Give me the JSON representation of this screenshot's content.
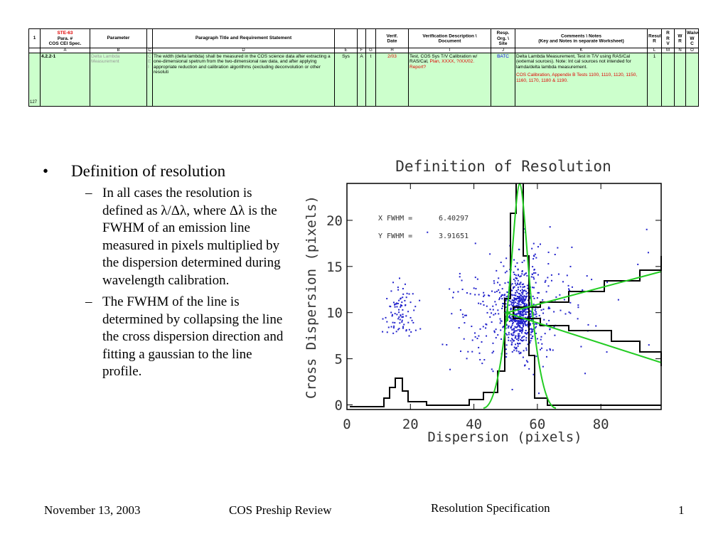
{
  "table": {
    "header": [
      [
        "1"
      ],
      [
        "COS CEI Spec.",
        "Para. #",
        "STE-63"
      ],
      [
        "Parameter"
      ],
      [
        ""
      ],
      [
        "Paragraph Title and Requirement Statement"
      ],
      [
        ""
      ],
      [
        ""
      ],
      [
        ""
      ],
      [
        "Date",
        "Verif."
      ],
      [
        "Document",
        "Verification Description \\"
      ],
      [
        "Site",
        "Org. \\",
        "Resp."
      ],
      [
        "(Key and Notes in separate Worksheet)",
        "Comments \\ Notes"
      ],
      [
        "R",
        "Results"
      ],
      [
        "V",
        "R",
        "R"
      ],
      [
        "R",
        "W"
      ],
      [
        "C",
        "W",
        "Waiver"
      ]
    ],
    "letters": [
      "A",
      "B",
      "C",
      "D",
      "E",
      "F",
      "G",
      "H",
      "I",
      "J",
      "K",
      "L",
      "M",
      "N",
      "O"
    ],
    "row_number": "127",
    "row": {
      "id": "4.2.2-1",
      "parameter": "Delta Lambda Measurement",
      "cei": "C E I",
      "requirement": "The width (delta lambda) shall be measured in the COS science data after extracting a one-dimensional spetrum from the two-dimensional raw data, and after applying appropriate reduction and calibration algorithms (excluding deconvolution or other resoluti",
      "e": "Sys",
      "f": "A",
      "g": "t",
      "date": "2/03",
      "doc_black": "Test, COS Sys T/V Calibration w/ RAS/Cal, ",
      "doc_red": "Plan, XXXX, ?/XX/02. Report?",
      "resp": "BATC",
      "comments_black": "Delta Lambda Measurement, Test in T/V using RAS/Cal (external sources). Note: Int cal sources not intended for lamda/delta lambda measurement.",
      "comments_red": "COS Calibration, Appendix B Tests 1100, 1110, 1120, 1150, 1160, 1170, 1180 & 1190.",
      "results": "1"
    }
  },
  "bullets": {
    "main": "Definition of resolution",
    "sub": [
      "In all cases the resolution is defined as λ/Δλ, where Δλ is the FWHM of an emission line measured in pixels multiplied by the dispersion determined during wavelength calibration.",
      "The FWHM of the line is determined by collapsing the line the cross dispersion direction  and fitting a gaussian to the line profile."
    ]
  },
  "figure": {
    "title": "Definition of Resolution",
    "x_label": "Dispersion (pixels)",
    "y_label": "Cross Dispersion (pixels)",
    "xlim": [
      0,
      99
    ],
    "ylim": [
      -0.5,
      24
    ],
    "xticks": [
      0,
      20,
      40,
      60,
      80
    ],
    "yticks": [
      0,
      5,
      10,
      15,
      20
    ],
    "annotations": [
      [
        "X FWHM =",
        "6.40297"
      ],
      [
        "Y FWHM =",
        "3.91651"
      ]
    ]
  },
  "footer": {
    "date": "November 13, 2003",
    "event": "COS Preship Review",
    "topic": "Resolution Specification",
    "page": "1"
  }
}
